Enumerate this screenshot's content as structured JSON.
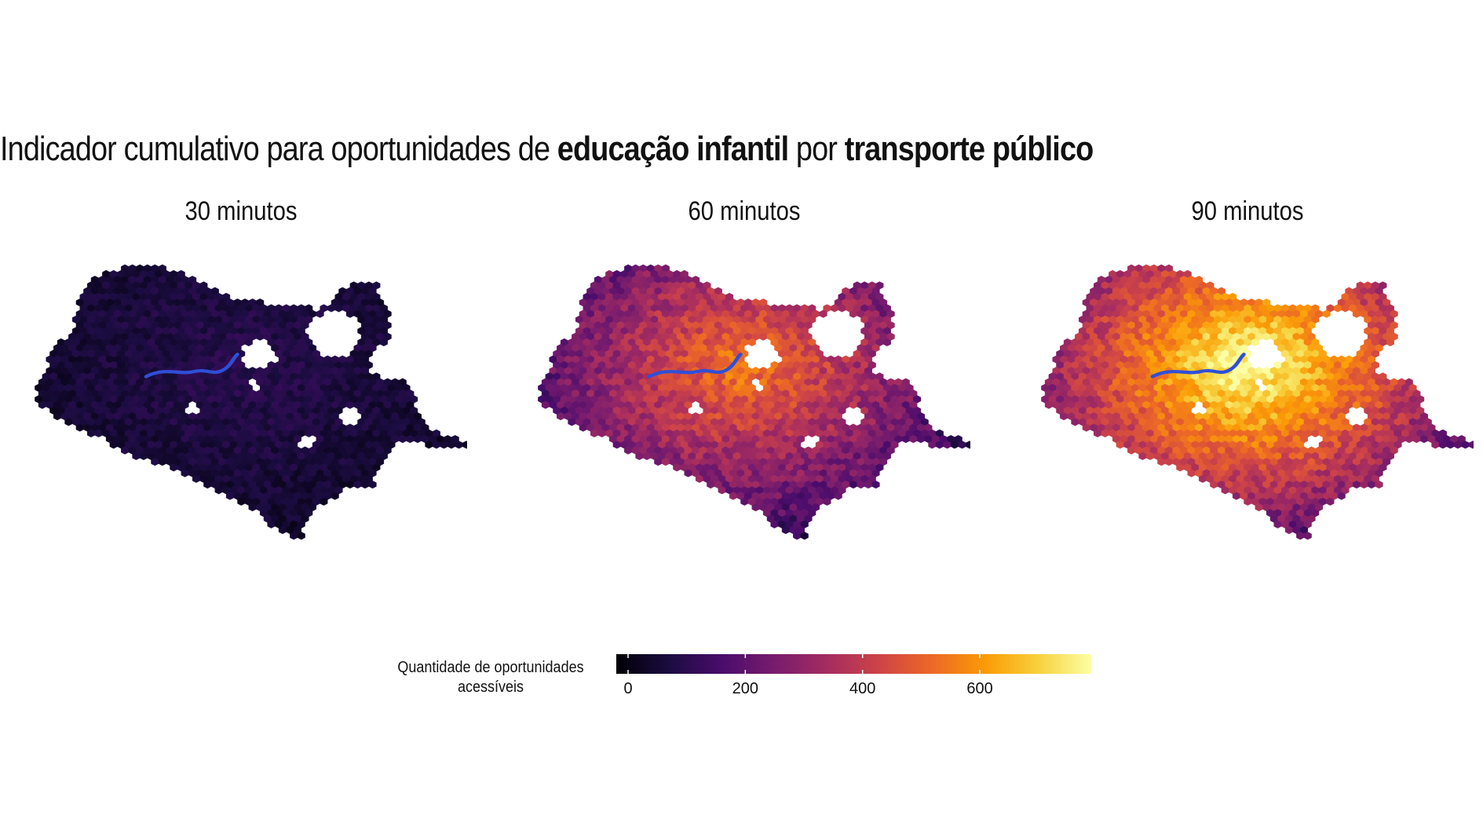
{
  "title": {
    "part1": "Indicador cumulativo para oportunidades de ",
    "bold1": "educação infantil",
    "part2": " por ",
    "bold2": "transporte público"
  },
  "panels": [
    {
      "label": "30 minutos",
      "level": 0.18
    },
    {
      "label": "60 minutos",
      "level": 0.62
    },
    {
      "label": "90 minutos",
      "level": 0.9
    }
  ],
  "legend": {
    "title_line1": "Quantidade de oportunidades",
    "title_line2": "acessíveis",
    "ticks": [
      "0",
      "200",
      "400",
      "600"
    ],
    "range": [
      0,
      800
    ],
    "palette": "inferno"
  },
  "colors": {
    "river": "#2f4fd8",
    "palette_stops": [
      "#000004",
      "#1b0c41",
      "#4a0c6b",
      "#781c6d",
      "#a52c60",
      "#cf4446",
      "#ed6925",
      "#fb9b06",
      "#f7d13d",
      "#fcffa4"
    ]
  }
}
